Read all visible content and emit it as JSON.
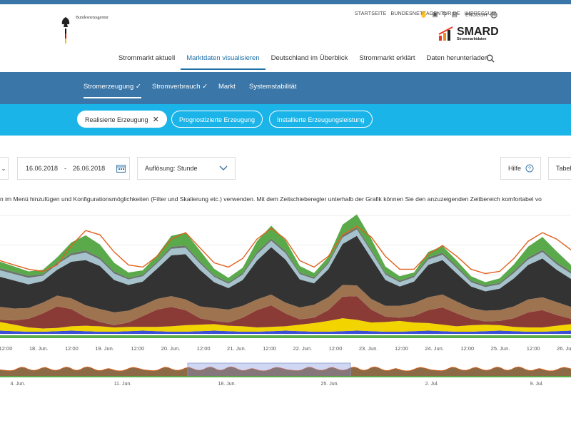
{
  "header": {
    "agency_name": "Bundesnetzagentur",
    "service_links": [
      "STARTSEITE",
      "BUNDESNETZAGENTUR.DE",
      "IMPRESSUM"
    ],
    "language": "ENGLISH",
    "brand": "SMARD",
    "brand_sub": "Strommarktdaten"
  },
  "mainnav": {
    "items": [
      "Strommarkt aktuell",
      "Marktdaten visualisieren",
      "Deutschland im Überblick",
      "Strommarkt erklärt",
      "Daten herunterladen"
    ],
    "active_index": 1
  },
  "subnav": {
    "items": [
      "Stromerzeugung",
      "Stromverbrauch",
      "Markt",
      "Systemstabilität"
    ],
    "active_index": 0
  },
  "filters": {
    "active": "Realisierte Erzeugung",
    "others": [
      "Prognostizierte Erzeugung",
      "Installierte Erzeugungsleistung"
    ]
  },
  "controls": {
    "date_from": "16.06.2018",
    "date_sep": "-",
    "date_to": "26.06.2018",
    "resolution": "Auflösung: Stunde",
    "help": "Hilfe",
    "table": "Tabel"
  },
  "description": "n im Menü hinzufügen und Konfigurationsmöglichkeiten (Filter und Skalierung etc.) verwenden. Mit dem Zeitschieberegler unterhalb der Grafik können Sie den anzuzeigenden Zeitbereich komfortabel vo",
  "colors": {
    "brand_blue": "#3a76a8",
    "filter_cyan": "#1ab4e8",
    "total_line": "#e0621e",
    "series": [
      "#3a4fd6",
      "#f2d400",
      "#8a3b35",
      "#9e7350",
      "#333333",
      "#a6c2cc",
      "#6b756d",
      "#5aaa4b"
    ]
  },
  "chart_data": {
    "type": "area",
    "title": "",
    "x_tick_labels": [
      "12:00",
      "18. Jun.",
      "12:00",
      "19. Jun.",
      "12:00",
      "20. Jun.",
      "12:00",
      "21. Jun.",
      "12:00",
      "22. Jun.",
      "12:00",
      "23. Jun.",
      "12:00",
      "24. Jun.",
      "12:00",
      "25. Jun.",
      "12:00",
      "26. Jun."
    ],
    "navigator_tick_labels": [
      "4. Jun.",
      "11. Jun.",
      "18. Jun.",
      "25. Jun.",
      "2. Jul.",
      "9. Jul."
    ],
    "xlabel": "",
    "ylabel": "",
    "grid": true,
    "samples_per_series": 41,
    "series": [
      {
        "values": [
          3,
          2.5,
          2,
          2,
          2.5,
          3,
          2.5,
          2,
          2,
          2.5,
          3,
          2.5,
          2,
          2,
          2.5,
          3,
          2.5,
          2,
          2,
          2.5,
          3,
          2.5,
          2,
          2,
          2.5,
          3,
          2.5,
          2,
          2,
          2.5,
          3,
          2.5,
          2,
          2,
          2.5,
          3,
          2.5,
          2,
          2,
          2.5,
          3
        ]
      },
      {
        "values": [
          8,
          6,
          4,
          3,
          3,
          4,
          5,
          5,
          4,
          4,
          3.5,
          4,
          5,
          6,
          6,
          6,
          5,
          5,
          4,
          4,
          4,
          6,
          8,
          10,
          12,
          10,
          8,
          9,
          10,
          8,
          7,
          6,
          5,
          6,
          6,
          5,
          4,
          4,
          4,
          5,
          6
        ]
      },
      {
        "values": [
          2,
          4,
          8,
          14,
          20,
          16,
          8,
          4,
          2,
          4,
          10,
          16,
          18,
          14,
          6,
          3,
          3,
          8,
          16,
          20,
          12,
          5,
          5,
          10,
          20,
          22,
          12,
          5,
          3,
          6,
          12,
          16,
          12,
          6,
          3,
          4,
          8,
          14,
          16,
          10,
          5
        ]
      },
      {
        "values": [
          12,
          11,
          10,
          10,
          10,
          10,
          11,
          12,
          12,
          11,
          10,
          10,
          10,
          10,
          11,
          12,
          12,
          11,
          10,
          10,
          10,
          11,
          12,
          12,
          11,
          10,
          10,
          10,
          11,
          12,
          12,
          12,
          11,
          10,
          10,
          10,
          11,
          12,
          12,
          12,
          11
        ]
      },
      {
        "values": [
          28,
          26,
          22,
          20,
          24,
          34,
          42,
          40,
          30,
          24,
          22,
          28,
          38,
          42,
          34,
          24,
          20,
          24,
          36,
          44,
          40,
          26,
          20,
          26,
          38,
          46,
          38,
          24,
          18,
          20,
          30,
          32,
          26,
          20,
          18,
          20,
          26,
          32,
          36,
          30,
          26
        ]
      },
      {
        "values": [
          6,
          6,
          6,
          5,
          5,
          6,
          7,
          6,
          6,
          5,
          5,
          5,
          6,
          6,
          6,
          5,
          4,
          5,
          6,
          6,
          6,
          5,
          4,
          5,
          6,
          6,
          6,
          5,
          4,
          4,
          5,
          5,
          5,
          4,
          4,
          4,
          5,
          5,
          6,
          5,
          5
        ]
      },
      {
        "values": [
          2,
          2,
          2,
          1.5,
          1.5,
          2,
          2,
          2,
          2,
          1.5,
          1.5,
          1.5,
          2,
          2,
          2,
          1.5,
          1.5,
          1.5,
          2,
          2,
          2,
          1.5,
          1.5,
          1.5,
          2,
          2,
          2,
          1.5,
          1.5,
          1.5,
          2,
          2,
          2,
          1.5,
          1.5,
          1.5,
          2,
          2,
          2,
          2,
          2
        ]
      },
      {
        "values": [
          6,
          5,
          4,
          4,
          5,
          10,
          14,
          12,
          8,
          5,
          4,
          6,
          10,
          12,
          10,
          6,
          4,
          5,
          10,
          12,
          10,
          6,
          4,
          5,
          10,
          12,
          10,
          6,
          4,
          3,
          5,
          6,
          5,
          4,
          3,
          4,
          6,
          10,
          12,
          10,
          6
        ]
      }
    ],
    "total": [
      68,
      64,
      60,
      58,
      64,
      82,
      96,
      92,
      76,
      64,
      62,
      72,
      88,
      94,
      80,
      66,
      62,
      70,
      88,
      98,
      88,
      68,
      62,
      72,
      92,
      100,
      90,
      72,
      60,
      60,
      74,
      82,
      72,
      60,
      56,
      58,
      70,
      86,
      94,
      88,
      78
    ],
    "ylim": [
      0,
      110
    ]
  }
}
